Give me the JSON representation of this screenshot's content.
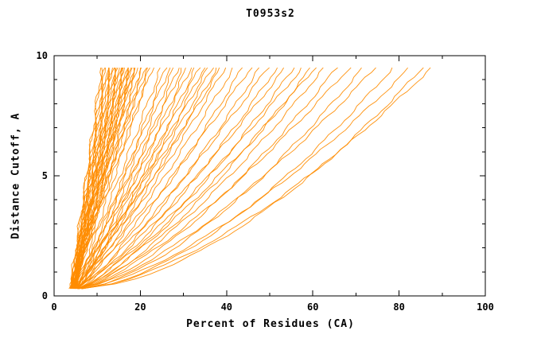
{
  "chart_data": {
    "type": "line",
    "title": "T0953s2",
    "xlabel": "Percent of Residues (CA)",
    "ylabel": "Distance Cutoff, A",
    "xlim": [
      0,
      100
    ],
    "ylim": [
      0,
      10
    ],
    "x_major_ticks": [
      0,
      20,
      40,
      60,
      80,
      100
    ],
    "x_minor_ticks": [
      10,
      30,
      50,
      70,
      90
    ],
    "y_major_ticks": [
      0,
      5,
      10
    ],
    "y_minor_ticks": [
      1,
      2,
      3,
      4,
      6,
      7,
      8,
      9
    ],
    "grid": false,
    "legend": false,
    "line_color": "#ff8c00",
    "axis_color": "#000000",
    "background_color": "#ffffff",
    "curve_y_start": 0.3,
    "curve_y_end": 9.6,
    "curves_note": "Each curve = one model; [percent_at_low_cutoff, percent_at_cutoff_9.6, shape_exponent]",
    "curves": [
      [
        4.0,
        11,
        1.0
      ],
      [
        4.2,
        11.8,
        1.05
      ],
      [
        3.8,
        12.4,
        0.98
      ],
      [
        4.4,
        13,
        1.1
      ],
      [
        4.1,
        13.6,
        1.02
      ],
      [
        4.5,
        14.1,
        0.96
      ],
      [
        3.9,
        14.7,
        1.08
      ],
      [
        4.3,
        15.2,
        1.0
      ],
      [
        4.6,
        15.8,
        1.12
      ],
      [
        4.0,
        16.3,
        0.97
      ],
      [
        4.4,
        16.9,
        1.05
      ],
      [
        4.7,
        17.4,
        1.0
      ],
      [
        4.1,
        18,
        1.08
      ],
      [
        4.5,
        18.5,
        0.95
      ],
      [
        4.8,
        19.1,
        1.1
      ],
      [
        4.2,
        19.6,
        1.02
      ],
      [
        4.6,
        20.2,
        0.98
      ],
      [
        4.9,
        20.7,
        1.06
      ],
      [
        4.3,
        21.3,
        1.0
      ],
      [
        4.7,
        21.8,
        1.12
      ],
      [
        5.0,
        22.4,
        0.96
      ],
      [
        4.4,
        23,
        1.04
      ],
      [
        3.7,
        11.4,
        1.02
      ],
      [
        4.05,
        12.1,
        0.99
      ],
      [
        4.25,
        12.7,
        1.07
      ],
      [
        4.55,
        13.3,
        1.01
      ],
      [
        3.95,
        13.9,
        1.05
      ],
      [
        4.35,
        14.4,
        0.97
      ],
      [
        4.65,
        15,
        1.09
      ],
      [
        4.15,
        15.5,
        1.0
      ],
      [
        4.45,
        16.1,
        1.06
      ],
      [
        4.75,
        16.6,
        0.98
      ],
      [
        4.05,
        17.2,
        1.03
      ],
      [
        4.55,
        17.7,
        1.0
      ],
      [
        4.85,
        18.3,
        1.07
      ],
      [
        4.25,
        18.8,
        0.99
      ],
      [
        4.6,
        25,
        0.95
      ],
      [
        4.9,
        26,
        0.9
      ],
      [
        5.1,
        27,
        0.98
      ],
      [
        4.7,
        28,
        0.92
      ],
      [
        5.0,
        29,
        0.88
      ],
      [
        4.8,
        30,
        0.96
      ],
      [
        5.2,
        31,
        0.9
      ],
      [
        4.9,
        32,
        0.94
      ],
      [
        5.3,
        33,
        0.87
      ],
      [
        4.7,
        34,
        0.92
      ],
      [
        5.1,
        35,
        0.89
      ],
      [
        5.4,
        36,
        0.95
      ],
      [
        4.8,
        37,
        0.9
      ],
      [
        5.2,
        38,
        0.86
      ],
      [
        5.0,
        39,
        0.93
      ],
      [
        5.3,
        40,
        0.88
      ],
      [
        5.0,
        42,
        0.85
      ],
      [
        5.4,
        44,
        0.8
      ],
      [
        5.1,
        46,
        0.88
      ],
      [
        5.5,
        48,
        0.78
      ],
      [
        5.2,
        50,
        0.84
      ],
      [
        5.6,
        52,
        0.76
      ],
      [
        5.3,
        54,
        0.82
      ],
      [
        5.7,
        56,
        0.74
      ],
      [
        5.4,
        58,
        0.8
      ],
      [
        5.8,
        60,
        0.72
      ],
      [
        5.5,
        61,
        0.78
      ],
      [
        5.6,
        63,
        0.72
      ],
      [
        6.0,
        66,
        0.68
      ],
      [
        5.8,
        69,
        0.74
      ],
      [
        6.2,
        72,
        0.65
      ],
      [
        5.9,
        75,
        0.7
      ],
      [
        6.3,
        79,
        0.62
      ],
      [
        6.0,
        83,
        0.67
      ],
      [
        6.5,
        86,
        0.6
      ],
      [
        6.2,
        88,
        0.64
      ]
    ]
  }
}
